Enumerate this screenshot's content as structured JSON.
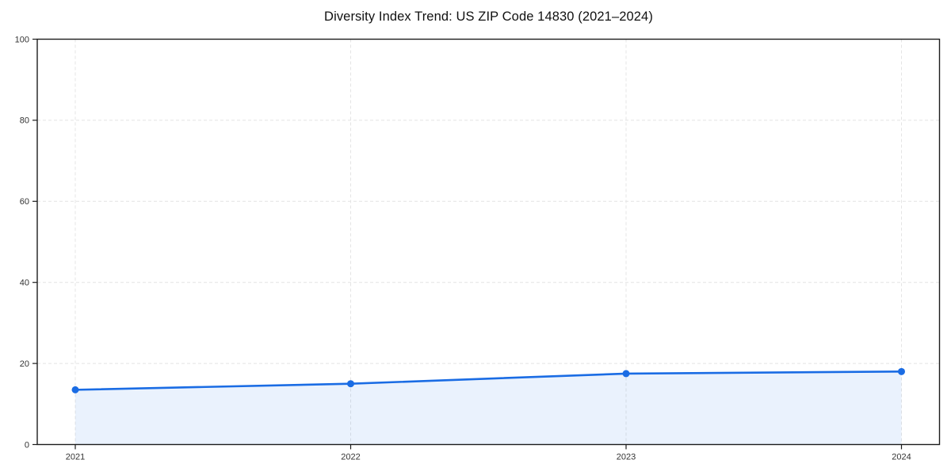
{
  "chart_data": {
    "type": "area",
    "title": "Diversity Index Trend: US ZIP Code 14830 (2021–2024)",
    "categories": [
      "2021",
      "2022",
      "2023",
      "2024"
    ],
    "values": [
      13.5,
      15.0,
      17.5,
      18.0
    ],
    "xlabel": "",
    "ylabel": "",
    "ylim": [
      0,
      100
    ],
    "yticks": [
      0,
      20,
      40,
      60,
      80,
      100
    ],
    "grid": "dashed",
    "legend_position": "none",
    "colors": {
      "line": "#1a6ce4",
      "fill": "rgba(26,108,228,0.09)",
      "grid": "#e4e4e4",
      "spine": "#1c1c1c",
      "tick_label": "#333333",
      "title": "#111111",
      "background": "#ffffff"
    }
  }
}
